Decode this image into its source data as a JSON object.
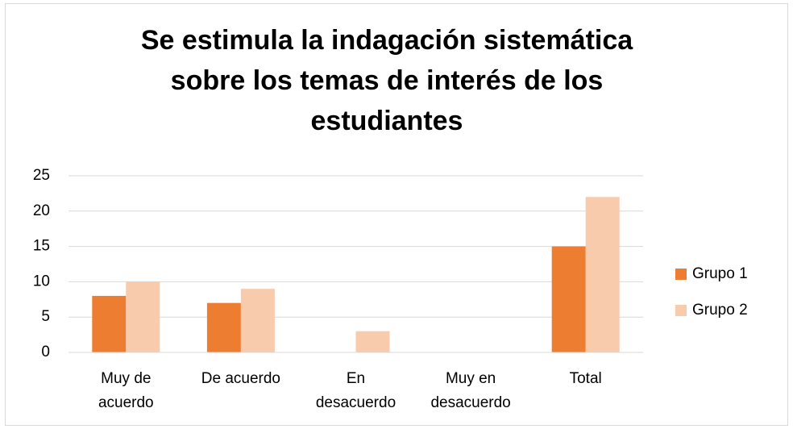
{
  "chart_data": {
    "type": "bar",
    "title": [
      "Se estimula la indagación sistemática",
      "sobre los temas de interés de los",
      "estudiantes"
    ],
    "categories": [
      "Muy de acuerdo",
      "De acuerdo",
      "En desacuerdo",
      "Muy en desacuerdo",
      "Total"
    ],
    "series": [
      {
        "name": "Grupo 1",
        "color": "#ed7d31",
        "values": [
          8,
          7,
          0,
          0,
          15
        ]
      },
      {
        "name": "Grupo 2",
        "color": "#f8cbad",
        "values": [
          10,
          9,
          3,
          0,
          22
        ]
      }
    ],
    "ylim": [
      0,
      25
    ],
    "yticks": [
      0,
      5,
      10,
      15,
      20,
      25
    ],
    "grid": true,
    "legend": "right"
  }
}
